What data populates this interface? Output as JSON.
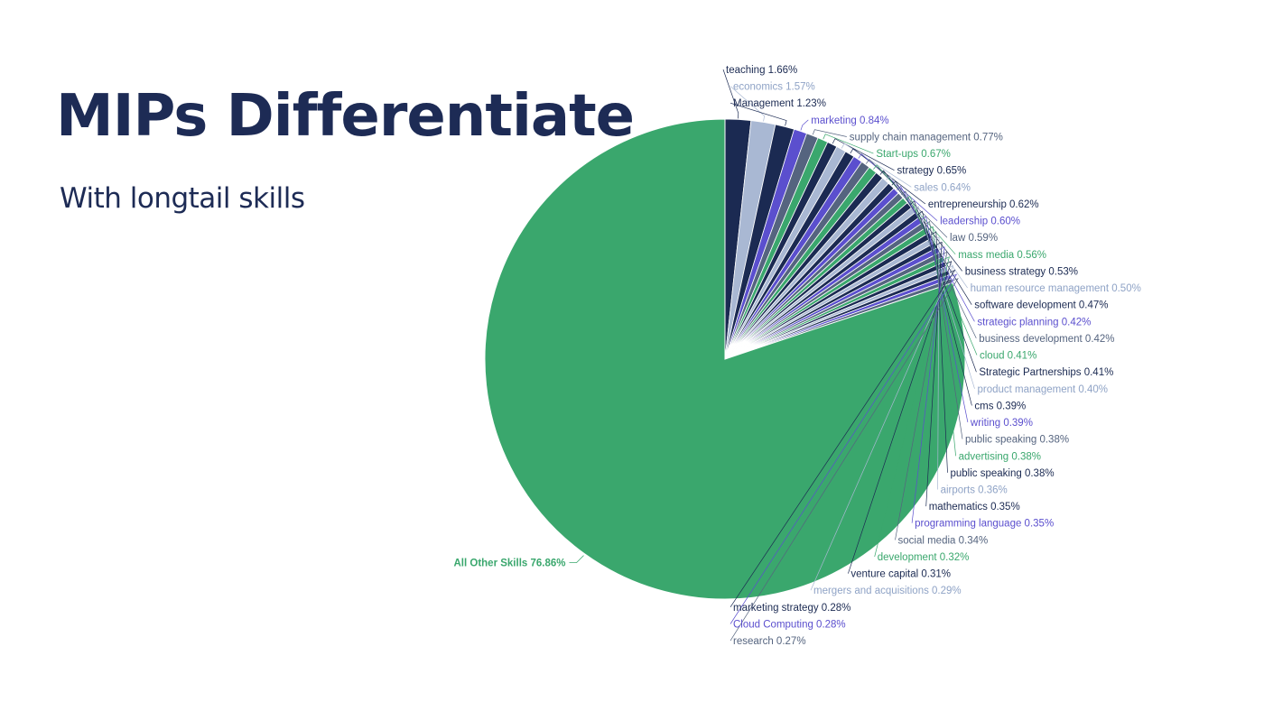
{
  "slide": {
    "title": "MIPs Differentiate",
    "subtitle": "With longtail skills"
  },
  "colors": {
    "title": "#1d2b55",
    "navy": "#1b2a52",
    "light": "#a9b8d3",
    "purple": "#5b4fce",
    "slate": "#55647f",
    "green": "#3aa76d",
    "other": "#3aa76d"
  },
  "chart_data": {
    "type": "pie",
    "slices": [
      {
        "label": "teaching",
        "value": 1.66,
        "pct": "1.66%",
        "color": "#1b2a52"
      },
      {
        "label": "economics",
        "value": 1.57,
        "pct": "1.57%",
        "color": "#a9b8d3"
      },
      {
        "label": "Management",
        "value": 1.23,
        "pct": "1.23%",
        "color": "#1b2a52"
      },
      {
        "label": "marketing",
        "value": 0.84,
        "pct": "0.84%",
        "color": "#5b4fce"
      },
      {
        "label": "supply chain management",
        "value": 0.77,
        "pct": "0.77%",
        "color": "#55647f"
      },
      {
        "label": "Start-ups",
        "value": 0.67,
        "pct": "0.67%",
        "color": "#3aa76d"
      },
      {
        "label": "strategy",
        "value": 0.65,
        "pct": "0.65%",
        "color": "#1b2a52"
      },
      {
        "label": "sales",
        "value": 0.64,
        "pct": "0.64%",
        "color": "#a9b8d3"
      },
      {
        "label": "entrepreneurship",
        "value": 0.62,
        "pct": "0.62%",
        "color": "#1b2a52"
      },
      {
        "label": "leadership",
        "value": 0.6,
        "pct": "0.60%",
        "color": "#5b4fce"
      },
      {
        "label": "law",
        "value": 0.59,
        "pct": "0.59%",
        "color": "#55647f"
      },
      {
        "label": "mass media",
        "value": 0.56,
        "pct": "0.56%",
        "color": "#3aa76d"
      },
      {
        "label": "business strategy",
        "value": 0.53,
        "pct": "0.53%",
        "color": "#1b2a52"
      },
      {
        "label": "human resource management",
        "value": 0.5,
        "pct": "0.50%",
        "color": "#a9b8d3"
      },
      {
        "label": "software development",
        "value": 0.47,
        "pct": "0.47%",
        "color": "#1b2a52"
      },
      {
        "label": "strategic planning",
        "value": 0.42,
        "pct": "0.42%",
        "color": "#5b4fce"
      },
      {
        "label": "business development",
        "value": 0.42,
        "pct": "0.42%",
        "color": "#55647f"
      },
      {
        "label": "cloud",
        "value": 0.41,
        "pct": "0.41%",
        "color": "#3aa76d"
      },
      {
        "label": "Strategic Partnerships",
        "value": 0.41,
        "pct": "0.41%",
        "color": "#1b2a52"
      },
      {
        "label": "product management",
        "value": 0.4,
        "pct": "0.40%",
        "color": "#a9b8d3"
      },
      {
        "label": "cms",
        "value": 0.39,
        "pct": "0.39%",
        "color": "#1b2a52"
      },
      {
        "label": "writing",
        "value": 0.39,
        "pct": "0.39%",
        "color": "#5b4fce"
      },
      {
        "label": "public speaking",
        "value": 0.38,
        "pct": "0.38%",
        "color": "#55647f"
      },
      {
        "label": "advertising",
        "value": 0.38,
        "pct": "0.38%",
        "color": "#3aa76d"
      },
      {
        "label": "public speaking",
        "value": 0.38,
        "pct": "0.38%",
        "color": "#1b2a52"
      },
      {
        "label": "airports",
        "value": 0.36,
        "pct": "0.36%",
        "color": "#a9b8d3"
      },
      {
        "label": "mathematics",
        "value": 0.35,
        "pct": "0.35%",
        "color": "#1b2a52"
      },
      {
        "label": "programming language",
        "value": 0.35,
        "pct": "0.35%",
        "color": "#5b4fce"
      },
      {
        "label": "social media",
        "value": 0.34,
        "pct": "0.34%",
        "color": "#55647f"
      },
      {
        "label": "development",
        "value": 0.32,
        "pct": "0.32%",
        "color": "#3aa76d"
      },
      {
        "label": "venture capital",
        "value": 0.31,
        "pct": "0.31%",
        "color": "#1b2a52"
      },
      {
        "label": "mergers and acquisitions",
        "value": 0.29,
        "pct": "0.29%",
        "color": "#a9b8d3"
      },
      {
        "label": "marketing strategy",
        "value": 0.28,
        "pct": "0.28%",
        "color": "#1b2a52"
      },
      {
        "label": "Cloud Computing",
        "value": 0.28,
        "pct": "0.28%",
        "color": "#5b4fce"
      },
      {
        "label": "research",
        "value": 0.27,
        "pct": "0.27%",
        "color": "#55647f"
      },
      {
        "label": "All Other Skills",
        "value": 76.86,
        "pct": "76.86%",
        "color": "#3aa76d",
        "other": true
      }
    ]
  }
}
